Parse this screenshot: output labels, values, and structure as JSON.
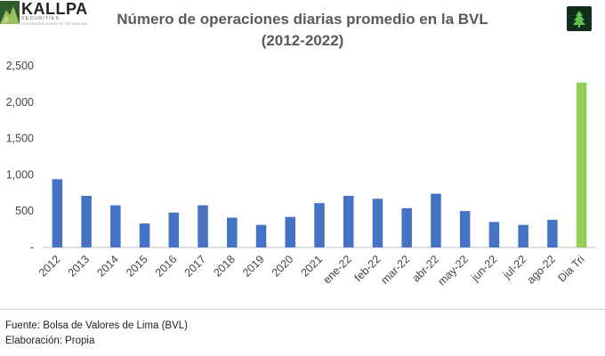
{
  "brand": {
    "name": "KALLPA",
    "subtitle": "SECURITIES",
    "tagline": "SOCIEDAD AGENTE DE BOLSA"
  },
  "badge_icon": "tree-icon",
  "colors": {
    "bar": "#4472c4",
    "highlight_bar": "#92d050",
    "title": "#5a5a5a",
    "badge_bg": "#0e2f1b"
  },
  "chart_data": {
    "type": "bar",
    "title": "Número de operaciones diarias promedio en la BVL",
    "subtitle": "(2012-2022)",
    "categories": [
      "2012",
      "2013",
      "2014",
      "2015",
      "2016",
      "2017",
      "2018",
      "2019",
      "2020",
      "2021",
      "ene-22",
      "feb-22",
      "mar-22",
      "abr-22",
      "may-22",
      "jun-22",
      "jul-22",
      "ago-22",
      "Dia Tri"
    ],
    "values": [
      940,
      710,
      580,
      330,
      480,
      580,
      410,
      310,
      420,
      610,
      710,
      670,
      540,
      740,
      500,
      350,
      310,
      380,
      2270
    ],
    "highlight_index": 18,
    "y_ticks": [
      "-",
      "500",
      "1,000",
      "1,500",
      "2,000",
      "2,500"
    ],
    "ylim": [
      0,
      2500
    ],
    "grid": false,
    "legend": "none",
    "xlabel": "",
    "ylabel": ""
  },
  "footer": {
    "source": "Fuente: Bolsa de Valores de Lima (BVL)",
    "elaboration": "Elaboración: Propia"
  }
}
